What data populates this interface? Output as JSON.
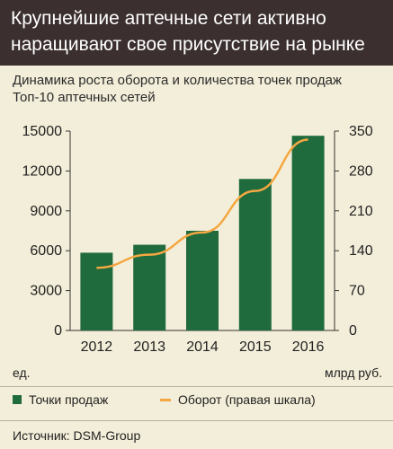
{
  "header": {
    "title_line1": "Крупнейшие аптечные сети активно",
    "title_line2": "наращивают свое присутствие на рынке"
  },
  "subtitle": {
    "line1": "Динамика роста оборота и количества точек продаж",
    "line2": "Топ-10 аптечных сетей"
  },
  "legend": {
    "bars": "Точки продаж",
    "line": "Оборот (правая шкала)"
  },
  "source": "Источник: DSM-Group",
  "colors": {
    "bar": "#1f6b3d",
    "line": "#f4a742",
    "header_bg": "#3b2f2f",
    "background": "#f3eed9"
  },
  "chart_data": {
    "type": "bar",
    "categories": [
      "2012",
      "2013",
      "2014",
      "2015",
      "2016"
    ],
    "series": [
      {
        "name": "Точки продаж",
        "type": "bar",
        "axis": "left",
        "values": [
          5850,
          6450,
          7500,
          11400,
          14650
        ]
      },
      {
        "name": "Оборот (правая шкала)",
        "type": "line",
        "axis": "right",
        "values": [
          110,
          133,
          172,
          245,
          335
        ]
      }
    ],
    "ylabel": "ед.",
    "y2label": "млрд руб.",
    "ylim": [
      0,
      15000
    ],
    "y2lim": [
      0,
      350
    ],
    "yticks": [
      "0",
      "3000",
      "6000",
      "9000",
      "12000",
      "15000"
    ],
    "y2ticks": [
      "0",
      "70",
      "140",
      "210",
      "280",
      "350"
    ],
    "grid": false,
    "legend_position": "bottom"
  }
}
